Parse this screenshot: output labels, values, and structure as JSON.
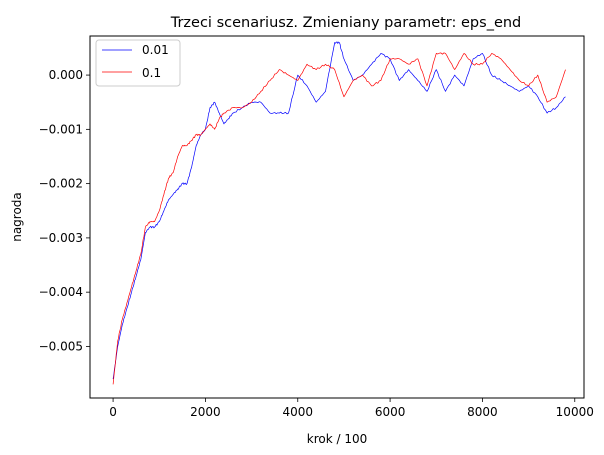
{
  "chart_data": {
    "type": "line",
    "title": "Trzeci scenariusz. Zmieniany parametr: eps_end",
    "xlabel": "krok / 100",
    "ylabel": "nagroda",
    "xlim": [
      -500,
      10200
    ],
    "ylim": [
      -0.00595,
      0.00072
    ],
    "xticks": [
      {
        "value": 0,
        "label": "0"
      },
      {
        "value": 2000,
        "label": "2000"
      },
      {
        "value": 4000,
        "label": "4000"
      },
      {
        "value": 6000,
        "label": "6000"
      },
      {
        "value": 8000,
        "label": "8000"
      },
      {
        "value": 10000,
        "label": "10000"
      }
    ],
    "yticks": [
      {
        "value": 0.0,
        "label": "0.000"
      },
      {
        "value": -0.001,
        "label": "−0.001"
      },
      {
        "value": -0.002,
        "label": "−0.002"
      },
      {
        "value": -0.003,
        "label": "−0.003"
      },
      {
        "value": -0.004,
        "label": "−0.004"
      },
      {
        "value": -0.005,
        "label": "−0.005"
      }
    ],
    "grid": false,
    "legend_position": "top-left",
    "series": [
      {
        "name": "0.01",
        "color": "#0000ff",
        "x": [
          0,
          100,
          200,
          300,
          400,
          500,
          600,
          700,
          800,
          900,
          1000,
          1100,
          1200,
          1300,
          1400,
          1500,
          1600,
          1700,
          1800,
          1900,
          2000,
          2100,
          2200,
          2300,
          2400,
          2500,
          2600,
          2800,
          3000,
          3200,
          3400,
          3600,
          3800,
          4000,
          4200,
          4400,
          4600,
          4800,
          4900,
          5000,
          5200,
          5400,
          5600,
          5800,
          6000,
          6200,
          6400,
          6600,
          6800,
          7000,
          7200,
          7400,
          7600,
          7800,
          8000,
          8200,
          8400,
          8600,
          8800,
          9000,
          9200,
          9400,
          9600,
          9800
        ],
        "y": [
          -0.0056,
          -0.005,
          -0.0046,
          -0.0043,
          -0.004,
          -0.0037,
          -0.0034,
          -0.0029,
          -0.0028,
          -0.0028,
          -0.0027,
          -0.0025,
          -0.0023,
          -0.0022,
          -0.0021,
          -0.002,
          -0.002,
          -0.0017,
          -0.0013,
          -0.0011,
          -0.001,
          -0.0006,
          -0.0005,
          -0.0007,
          -0.0009,
          -0.0008,
          -0.0007,
          -0.0006,
          -0.0005,
          -0.0005,
          -0.0007,
          -0.0007,
          -0.0007,
          0.0,
          -0.0002,
          -0.0005,
          -0.0003,
          0.0006,
          0.0006,
          0.0003,
          -0.0001,
          0.0,
          0.0002,
          0.0004,
          0.0003,
          -0.0001,
          0.0001,
          -0.0001,
          -0.0003,
          0.0001,
          -0.0003,
          0.0,
          -0.0002,
          0.0003,
          0.0004,
          0.0,
          -0.0001,
          -0.0002,
          -0.0003,
          -0.0002,
          -0.0004,
          -0.0007,
          -0.0006,
          -0.0004
        ]
      },
      {
        "name": "0.1",
        "color": "#ff0000",
        "x": [
          0,
          100,
          200,
          300,
          400,
          500,
          600,
          700,
          800,
          900,
          1000,
          1100,
          1200,
          1300,
          1400,
          1500,
          1600,
          1700,
          1800,
          1900,
          2000,
          2100,
          2200,
          2300,
          2400,
          2600,
          2800,
          3000,
          3200,
          3400,
          3600,
          3800,
          4000,
          4200,
          4400,
          4600,
          4800,
          5000,
          5200,
          5400,
          5600,
          5800,
          6000,
          6200,
          6400,
          6600,
          6800,
          7000,
          7200,
          7400,
          7600,
          7800,
          8000,
          8200,
          8400,
          8600,
          8800,
          9000,
          9200,
          9400,
          9600,
          9800
        ],
        "y": [
          -0.0057,
          -0.0049,
          -0.0045,
          -0.0042,
          -0.0039,
          -0.0036,
          -0.0033,
          -0.0028,
          -0.0027,
          -0.0027,
          -0.0025,
          -0.0022,
          -0.0019,
          -0.0018,
          -0.0015,
          -0.0013,
          -0.0013,
          -0.0012,
          -0.0011,
          -0.0011,
          -0.001,
          -0.0009,
          -0.001,
          -0.0008,
          -0.0007,
          -0.0006,
          -0.0006,
          -0.0005,
          -0.0003,
          -0.0001,
          0.0001,
          0.0,
          -0.0001,
          0.0002,
          0.0001,
          0.0002,
          0.0001,
          -0.0004,
          -0.0001,
          0.0,
          -0.0002,
          -0.0001,
          0.0003,
          0.0003,
          0.0002,
          0.0003,
          -0.0002,
          0.0004,
          0.0004,
          0.0001,
          0.0004,
          0.0002,
          0.0002,
          0.0004,
          0.0003,
          0.0001,
          -0.0001,
          -0.0002,
          0.0,
          -0.0005,
          -0.0004,
          0.0001
        ]
      }
    ]
  }
}
